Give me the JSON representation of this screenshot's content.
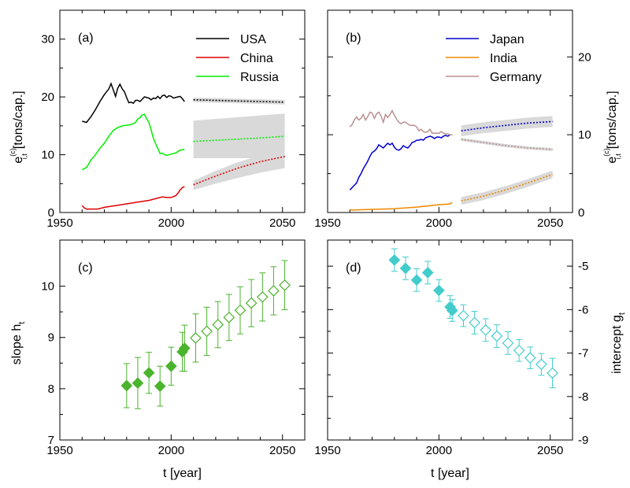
{
  "chart_data": [
    {
      "panel": "a",
      "type": "line",
      "label": "(a)",
      "ylabel": "e",
      "ylabel_sup": "(c)",
      "ylabel_sub": "i,t",
      "ylabel_unit": "[tons/cap.]",
      "xlim": [
        1950,
        2060
      ],
      "ylim": [
        0,
        35
      ],
      "yticks": [
        0,
        10,
        20,
        30
      ],
      "xticks": [
        1950,
        2000,
        2050
      ],
      "grid": false,
      "legend": "top-right",
      "series": [
        {
          "name": "USA",
          "color": "#000000",
          "x": [
            1960,
            1962,
            1964,
            1966,
            1968,
            1970,
            1972,
            1973,
            1974,
            1975,
            1976,
            1977,
            1978,
            1979,
            1980,
            1981,
            1982,
            1983,
            1984,
            1985,
            1986,
            1987,
            1988,
            1989,
            1990,
            1991,
            1992,
            1993,
            1994,
            1995,
            1996,
            1997,
            1998,
            1999,
            2000,
            2001,
            2002,
            2003,
            2004,
            2005,
            2006
          ],
          "y": [
            15.8,
            15.6,
            16.6,
            17.8,
            19.2,
            20.4,
            21.4,
            22.3,
            21.2,
            20.1,
            21.5,
            22.2,
            21.4,
            20.9,
            19.9,
            19.0,
            19.1,
            18.9,
            19.4,
            19.4,
            19.2,
            19.6,
            20.0,
            19.9,
            19.8,
            19.5,
            19.8,
            19.7,
            20.1,
            19.7,
            20.2,
            20.3,
            19.9,
            20.2,
            20.1,
            19.8,
            19.9,
            20.0,
            20.1,
            19.7,
            19.2
          ]
        },
        {
          "name": "China",
          "color": "#dd0000",
          "x": [
            1960,
            1961,
            1962,
            1965,
            1967,
            1970,
            1975,
            1980,
            1985,
            1990,
            1995,
            1996,
            1998,
            2000,
            2002,
            2003,
            2004,
            2005,
            2006
          ],
          "y": [
            1.2,
            0.8,
            0.6,
            0.6,
            0.6,
            0.9,
            1.2,
            1.5,
            1.8,
            2.1,
            2.6,
            2.7,
            2.6,
            2.6,
            2.9,
            3.3,
            3.9,
            4.3,
            4.5
          ]
        },
        {
          "name": "Russia",
          "color": "#00ee00",
          "x": [
            1960,
            1962,
            1964,
            1966,
            1968,
            1970,
            1972,
            1974,
            1976,
            1978,
            1980,
            1982,
            1984,
            1985,
            1986,
            1987,
            1988,
            1989,
            1990,
            1991,
            1992,
            1993,
            1994,
            1995,
            1996,
            1997,
            1998,
            2000,
            2002,
            2004,
            2006
          ],
          "y": [
            7.4,
            7.8,
            9.1,
            10.0,
            11.1,
            12.0,
            13.2,
            14.2,
            14.7,
            15.0,
            15.1,
            15.2,
            15.6,
            16.2,
            16.4,
            16.9,
            17.0,
            16.2,
            15.6,
            14.3,
            12.9,
            11.9,
            11.1,
            10.2,
            10.3,
            10.0,
            9.9,
            10.1,
            10.3,
            10.8,
            10.9
          ]
        }
      ],
      "forecasts": [
        {
          "series": "USA",
          "x": [
            2010,
            2020,
            2030,
            2040,
            2051
          ],
          "y": [
            19.5,
            19.4,
            19.3,
            19.2,
            19.1
          ],
          "band": 0.4
        },
        {
          "series": "Russia",
          "x": [
            2010,
            2020,
            2030,
            2040,
            2051
          ],
          "y": [
            12.3,
            12.5,
            12.7,
            12.9,
            13.2
          ],
          "band_lower": [
            9.4,
            9.4,
            9.4,
            9.4,
            9.4
          ],
          "band_upper": [
            15.9,
            16.2,
            16.5,
            16.8,
            17.1
          ]
        },
        {
          "series": "China",
          "x": [
            2010,
            2020,
            2030,
            2040,
            2051
          ],
          "y": [
            4.8,
            6.3,
            7.7,
            8.8,
            9.7
          ],
          "band_lower": [
            3.9,
            5.0,
            6.0,
            6.9,
            7.7
          ],
          "band_upper": [
            5.5,
            7.2,
            8.7,
            9.9,
            10.9
          ]
        }
      ]
    },
    {
      "panel": "b",
      "type": "line",
      "label": "(b)",
      "ylabel": "e",
      "ylabel_sup": "(c)",
      "ylabel_sub": "i,t",
      "ylabel_unit": "[tons/cap.]",
      "xlim": [
        1950,
        2060
      ],
      "ylim": [
        0,
        26
      ],
      "yticks": [
        0,
        10,
        20
      ],
      "xticks": [
        1950,
        2000,
        2050
      ],
      "grid": false,
      "legend": "top-center",
      "series": [
        {
          "name": "Japan",
          "color": "#0000cc",
          "x": [
            1960,
            1961,
            1962,
            1963,
            1964,
            1965,
            1966,
            1967,
            1968,
            1969,
            1970,
            1971,
            1972,
            1973,
            1974,
            1975,
            1976,
            1977,
            1978,
            1979,
            1980,
            1981,
            1982,
            1983,
            1984,
            1985,
            1986,
            1987,
            1988,
            1989,
            1990,
            1991,
            1992,
            1993,
            1994,
            1995,
            1996,
            1997,
            1998,
            1999,
            2000,
            2001,
            2002,
            2003,
            2004,
            2005,
            2006
          ],
          "y": [
            2.9,
            3.2,
            3.5,
            3.8,
            4.5,
            5.0,
            5.6,
            6.1,
            6.6,
            7.2,
            7.7,
            7.9,
            8.2,
            8.7,
            8.5,
            8.3,
            8.6,
            8.9,
            8.7,
            8.9,
            8.4,
            8.1,
            8.0,
            8.2,
            8.6,
            8.4,
            8.3,
            8.6,
            9.0,
            9.1,
            9.3,
            9.3,
            9.4,
            9.3,
            9.6,
            9.7,
            9.8,
            9.7,
            9.5,
            9.7,
            9.7,
            9.6,
            9.8,
            9.9,
            9.8,
            10.0,
            10.0
          ]
        },
        {
          "name": "India",
          "color": "#ee8800",
          "x": [
            1960,
            1965,
            1970,
            1975,
            1980,
            1985,
            1990,
            1995,
            2000,
            2005,
            2006
          ],
          "y": [
            0.3,
            0.35,
            0.4,
            0.45,
            0.5,
            0.6,
            0.7,
            0.85,
            1.0,
            1.1,
            1.3
          ]
        },
        {
          "name": "Germany",
          "color": "#bb9191",
          "x": [
            1960,
            1961,
            1962,
            1963,
            1964,
            1965,
            1966,
            1967,
            1968,
            1969,
            1970,
            1971,
            1972,
            1973,
            1974,
            1975,
            1976,
            1977,
            1978,
            1979,
            1980,
            1981,
            1982,
            1983,
            1984,
            1985,
            1986,
            1987,
            1988,
            1989,
            1990,
            1991,
            1992,
            1993,
            1994,
            1995,
            1996,
            1997,
            1998,
            1999,
            2000,
            2001,
            2002,
            2003,
            2004,
            2005,
            2006
          ],
          "y": [
            11.0,
            11.3,
            11.9,
            12.3,
            11.9,
            12.1,
            12.6,
            11.9,
            12.3,
            12.9,
            12.8,
            12.1,
            12.7,
            12.9,
            12.4,
            11.6,
            12.6,
            12.2,
            12.6,
            13.1,
            12.5,
            12.0,
            11.6,
            11.4,
            11.6,
            11.6,
            11.4,
            11.2,
            11.2,
            11.2,
            11.0,
            10.5,
            10.7,
            10.4,
            10.3,
            10.4,
            10.7,
            10.2,
            10.2,
            10.2,
            10.2,
            10.4,
            10.2,
            10.1,
            10.1,
            10.0,
            10.0
          ]
        }
      ],
      "forecasts": [
        {
          "series": "Japan",
          "x": [
            2010,
            2020,
            2030,
            2040,
            2051
          ],
          "y": [
            10.5,
            10.9,
            11.2,
            11.5,
            11.7
          ],
          "band": 0.7
        },
        {
          "series": "Germany",
          "x": [
            2010,
            2020,
            2030,
            2040,
            2051
          ],
          "y": [
            9.4,
            9.0,
            8.6,
            8.3,
            8.1
          ],
          "band": 0.2
        },
        {
          "series": "India",
          "x": [
            2010,
            2020,
            2030,
            2040,
            2051
          ],
          "y": [
            1.5,
            2.1,
            2.9,
            3.8,
            4.9
          ],
          "band": 0.5
        }
      ]
    },
    {
      "panel": "c",
      "type": "scatter",
      "label": "(c)",
      "xlabel": "t  [year]",
      "ylabel": "slope  h",
      "ylabel_sub": "t",
      "xlim": [
        1950,
        2060
      ],
      "ylim": [
        7,
        10.9
      ],
      "yticks": [
        7,
        8,
        9,
        10
      ],
      "xticks": [
        1950,
        2000,
        2050
      ],
      "color": "#4bb42d",
      "points": [
        {
          "x": 1980,
          "y": 8.06,
          "err": 0.43,
          "filled": true
        },
        {
          "x": 1985,
          "y": 8.11,
          "err": 0.5,
          "filled": true
        },
        {
          "x": 1990,
          "y": 8.31,
          "err": 0.4,
          "filled": true
        },
        {
          "x": 1995,
          "y": 8.05,
          "err": 0.39,
          "filled": true
        },
        {
          "x": 2000,
          "y": 8.44,
          "err": 0.37,
          "filled": true
        },
        {
          "x": 2005,
          "y": 8.72,
          "err": 0.38,
          "filled": true
        },
        {
          "x": 2006,
          "y": 8.79,
          "err": 0.45,
          "filled": true
        },
        {
          "x": 2011,
          "y": 8.99,
          "err": 0.47,
          "filled": false
        },
        {
          "x": 2016,
          "y": 9.12,
          "err": 0.47,
          "filled": false
        },
        {
          "x": 2021,
          "y": 9.25,
          "err": 0.45,
          "filled": false
        },
        {
          "x": 2026,
          "y": 9.39,
          "err": 0.45,
          "filled": false
        },
        {
          "x": 2031,
          "y": 9.53,
          "err": 0.46,
          "filled": false
        },
        {
          "x": 2036,
          "y": 9.67,
          "err": 0.46,
          "filled": false
        },
        {
          "x": 2041,
          "y": 9.79,
          "err": 0.47,
          "filled": false
        },
        {
          "x": 2046,
          "y": 9.91,
          "err": 0.47,
          "filled": false
        },
        {
          "x": 2051,
          "y": 10.02,
          "err": 0.48,
          "filled": false
        }
      ]
    },
    {
      "panel": "d",
      "type": "scatter",
      "label": "(d)",
      "xlabel": "t  [year]",
      "ylabel": "intercept  g",
      "ylabel_sub": "t",
      "xlim": [
        1950,
        2060
      ],
      "ylim": [
        -9,
        -4.4
      ],
      "yticks": [
        -9,
        -8,
        -7,
        -6,
        -5
      ],
      "xticks": [
        1950,
        2000,
        2050
      ],
      "color": "#43cccc",
      "points": [
        {
          "x": 1980,
          "y": -4.86,
          "err": 0.26,
          "filled": true
        },
        {
          "x": 1985,
          "y": -5.05,
          "err": 0.26,
          "filled": true
        },
        {
          "x": 1990,
          "y": -5.32,
          "err": 0.26,
          "filled": true
        },
        {
          "x": 1995,
          "y": -5.15,
          "err": 0.26,
          "filled": true
        },
        {
          "x": 2000,
          "y": -5.56,
          "err": 0.25,
          "filled": true
        },
        {
          "x": 2005,
          "y": -5.94,
          "err": 0.26,
          "filled": true
        },
        {
          "x": 2006,
          "y": -6.02,
          "err": 0.25,
          "filled": true
        },
        {
          "x": 2011,
          "y": -6.14,
          "err": 0.25,
          "filled": false
        },
        {
          "x": 2016,
          "y": -6.3,
          "err": 0.26,
          "filled": false
        },
        {
          "x": 2021,
          "y": -6.47,
          "err": 0.26,
          "filled": false
        },
        {
          "x": 2026,
          "y": -6.61,
          "err": 0.26,
          "filled": false
        },
        {
          "x": 2031,
          "y": -6.77,
          "err": 0.26,
          "filled": false
        },
        {
          "x": 2036,
          "y": -6.94,
          "err": 0.25,
          "filled": false
        },
        {
          "x": 2041,
          "y": -7.11,
          "err": 0.25,
          "filled": false
        },
        {
          "x": 2046,
          "y": -7.26,
          "err": 0.25,
          "filled": false
        },
        {
          "x": 2051,
          "y": -7.46,
          "err": 0.34,
          "filled": false
        }
      ]
    }
  ]
}
